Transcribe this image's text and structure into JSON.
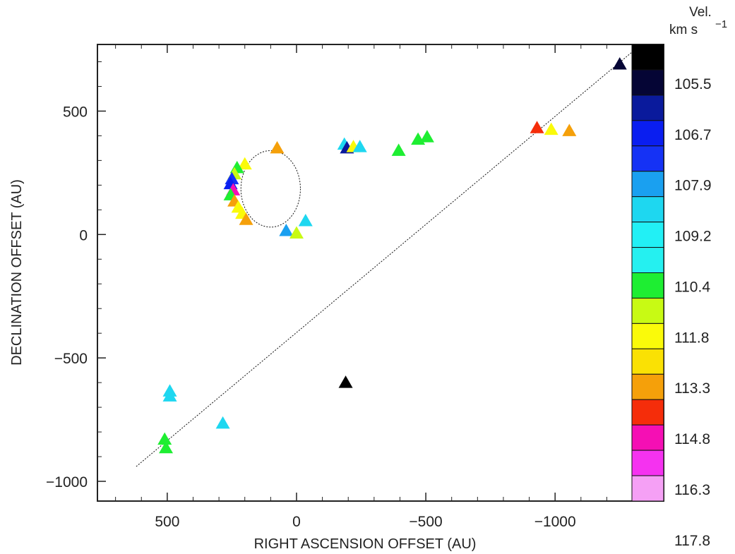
{
  "chart_data": {
    "type": "scatter",
    "title": "",
    "xlabel": "RIGHT ASCENSION OFFSET (AU)",
    "ylabel": "DECLINATION OFFSET (AU)",
    "xlim": [
      770,
      -1420
    ],
    "ylim": [
      -1080,
      770
    ],
    "x_ticks": [
      500,
      0,
      -500,
      -1000
    ],
    "x_tick_labels": [
      "500",
      "0",
      "−500",
      "−1000"
    ],
    "y_ticks": [
      500,
      0,
      -500,
      -1000
    ],
    "y_tick_labels": [
      "500",
      "0",
      "−500",
      "−1000"
    ],
    "grid": false,
    "colorbar": {
      "label_line1": "Vel.",
      "label_line2": "km s",
      "label_exponent": "−1",
      "tick_labels": [
        "105.5",
        "106.7",
        "107.9",
        "109.2",
        "110.4",
        "111.8",
        "113.3",
        "114.8",
        "116.3",
        "117.8"
      ],
      "colors": [
        "#000000",
        "#050535",
        "#0a1a9c",
        "#0a1ef0",
        "#1532f5",
        "#1aa0f0",
        "#1ed7f0",
        "#22f0f5",
        "#25f0f0",
        "#1eee32",
        "#c8fa14",
        "#fafa0a",
        "#fae104",
        "#f5a00a",
        "#f52d0a",
        "#f50fb4",
        "#f532f0",
        "#f5a0f5"
      ]
    },
    "points": [
      {
        "x": -1250,
        "y": 690,
        "v": 106.1
      },
      {
        "x": -930,
        "y": 432,
        "v": 115.5
      },
      {
        "x": -985,
        "y": 425,
        "v": 113.3
      },
      {
        "x": -1055,
        "y": 420,
        "v": 114.8
      },
      {
        "x": -470,
        "y": 385,
        "v": 111.8
      },
      {
        "x": -505,
        "y": 395,
        "v": 111.8
      },
      {
        "x": -395,
        "y": 340,
        "v": 111.8
      },
      {
        "x": -185,
        "y": 365,
        "v": 109.5
      },
      {
        "x": -195,
        "y": 350,
        "v": 107.3
      },
      {
        "x": -220,
        "y": 355,
        "v": 113.3
      },
      {
        "x": -245,
        "y": 355,
        "v": 110.0
      },
      {
        "x": 75,
        "y": 350,
        "v": 114.8
      },
      {
        "x": 200,
        "y": 285,
        "v": 113.3
      },
      {
        "x": 230,
        "y": 270,
        "v": 111.8
      },
      {
        "x": 240,
        "y": 245,
        "v": 112.5
      },
      {
        "x": 250,
        "y": 225,
        "v": 108.5
      },
      {
        "x": 255,
        "y": 205,
        "v": 107.9
      },
      {
        "x": 245,
        "y": 180,
        "v": 116.3
      },
      {
        "x": 255,
        "y": 160,
        "v": 111.8
      },
      {
        "x": 240,
        "y": 135,
        "v": 114.8
      },
      {
        "x": 225,
        "y": 110,
        "v": 113.3
      },
      {
        "x": 210,
        "y": 85,
        "v": 113.3
      },
      {
        "x": 195,
        "y": 60,
        "v": 114.8
      },
      {
        "x": 40,
        "y": 15,
        "v": 109.2
      },
      {
        "x": -35,
        "y": 55,
        "v": 109.6
      },
      {
        "x": 0,
        "y": 5,
        "v": 112.5
      },
      {
        "x": -190,
        "y": -600,
        "v": 105.5
      },
      {
        "x": 490,
        "y": -635,
        "v": 109.8
      },
      {
        "x": 490,
        "y": -655,
        "v": 109.8
      },
      {
        "x": 285,
        "y": -765,
        "v": 109.8
      },
      {
        "x": 510,
        "y": -830,
        "v": 111.8
      },
      {
        "x": 505,
        "y": -865,
        "v": 111.8
      }
    ],
    "line": {
      "x": [
        620,
        -1310
      ],
      "y": [
        -940,
        750
      ]
    },
    "ellipse": {
      "cx": 100,
      "cy": 185,
      "rx": 115,
      "ry": 155
    }
  }
}
